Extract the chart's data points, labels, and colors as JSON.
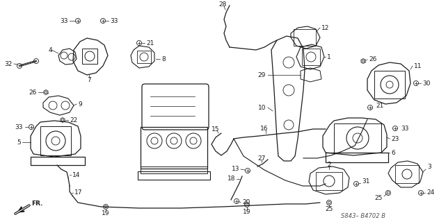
{
  "bg_color": "#ffffff",
  "line_color": "#1a1a1a",
  "diagram_ref": "S843– B4702 B",
  "figsize": [
    6.31,
    3.2
  ],
  "dpi": 100
}
